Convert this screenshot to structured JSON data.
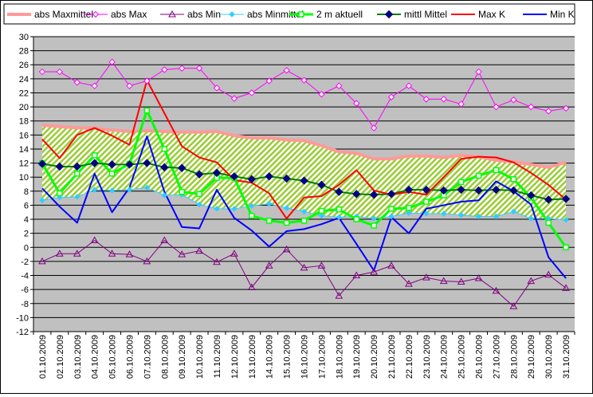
{
  "chart_data": {
    "type": "line",
    "title": "",
    "xlabel": "",
    "ylabel": "",
    "ylim": [
      -12,
      30
    ],
    "ytick_step": 2,
    "grid": true,
    "legend_position": "top",
    "categories": [
      "01.10.2009",
      "02.10.2009",
      "03.10.2009",
      "04.10.2009",
      "05.10.2009",
      "06.10.2009",
      "07.10.2009",
      "08.10.2009",
      "09.10.2009",
      "10.10.2009",
      "11.10.2009",
      "12.10.2009",
      "13.10.2009",
      "14.10.2009",
      "15.10.2009",
      "16.10.2009",
      "17.10.2009",
      "18.10.2009",
      "19.10.2009",
      "20.10.2009",
      "21.10.2009",
      "22.10.2009",
      "23.10.2009",
      "24.10.2009",
      "25.10.2009",
      "26.10.2009",
      "27.10.2009",
      "28.10.2009",
      "29.10.2009",
      "30.10.2009",
      "31.10.2009"
    ],
    "band": {
      "upper_series": "abs Maxmittel",
      "lower_series": "abs Minmittel",
      "fill_color": "#99cc33",
      "background_color": "#c0c0c0"
    },
    "series": [
      {
        "name": "abs Maxmittel",
        "color": "#ff9999",
        "marker": "none",
        "width": 4,
        "values": [
          17.4,
          17.2,
          17.0,
          17.0,
          16.7,
          16.5,
          16.6,
          16.5,
          16.4,
          16.4,
          16.5,
          15.9,
          15.6,
          15.6,
          15.3,
          15.2,
          14.5,
          13.6,
          13.4,
          12.6,
          12.6,
          13.0,
          13.0,
          12.8,
          13.1,
          12.9,
          12.4,
          12.2,
          11.8,
          11.4,
          12.1
        ]
      },
      {
        "name": "abs Max",
        "color": "#ff00ff",
        "marker": "diamond-open",
        "values": [
          25.0,
          25.0,
          23.5,
          23.0,
          26.4,
          23.0,
          23.7,
          25.3,
          25.5,
          25.5,
          22.7,
          21.2,
          22.0,
          23.7,
          25.2,
          23.8,
          21.8,
          23.0,
          20.5,
          17.0,
          21.4,
          23.0,
          21.1,
          21.1,
          20.4,
          25.0,
          20.0,
          21.0,
          20.0,
          19.4,
          19.8
        ]
      },
      {
        "name": "abs Min",
        "color": "#800080",
        "marker": "triangle-open",
        "values": [
          -2.0,
          -0.9,
          -0.9,
          1.0,
          -0.9,
          -1.0,
          -2.0,
          1.0,
          -1.0,
          -0.5,
          -2.1,
          -0.9,
          -5.7,
          -2.6,
          -0.3,
          -2.9,
          -2.6,
          -6.9,
          -4.0,
          -3.5,
          -2.6,
          -5.2,
          -4.3,
          -4.8,
          -4.9,
          -4.4,
          -6.2,
          -8.4,
          -4.8,
          -3.9,
          -5.8
        ]
      },
      {
        "name": "abs Minmittel",
        "color": "#33ccff",
        "marker": "diamond",
        "values": [
          6.7,
          7.1,
          7.2,
          8.2,
          8.1,
          8.2,
          8.5,
          7.4,
          7.5,
          6.1,
          5.5,
          5.5,
          5.9,
          6.2,
          5.6,
          5.1,
          4.5,
          4.3,
          4.4,
          4.1,
          4.4,
          4.9,
          4.8,
          4.8,
          4.6,
          4.4,
          4.4,
          5.1,
          4.1,
          4.1,
          3.9
        ]
      },
      {
        "name": "2 m aktuell",
        "color": "#00ff00",
        "marker": "square-open",
        "width": 3,
        "values": [
          12.0,
          7.7,
          10.5,
          13.1,
          10.5,
          11.9,
          19.5,
          14.0,
          7.9,
          7.6,
          9.9,
          9.9,
          4.5,
          3.8,
          3.5,
          3.8,
          5.2,
          5.4,
          4.0,
          3.1,
          5.5,
          5.6,
          6.5,
          7.4,
          9.3,
          10.2,
          11.0,
          9.7,
          7.1,
          3.5,
          0.0
        ]
      },
      {
        "name": "mittl Mittel",
        "color": "#008000",
        "marker": "diamond-navy",
        "width": 2,
        "values": [
          11.9,
          11.5,
          11.5,
          12.0,
          11.8,
          11.8,
          12.0,
          11.4,
          11.3,
          10.4,
          10.6,
          10.1,
          9.7,
          10.1,
          9.8,
          9.5,
          8.9,
          7.9,
          7.6,
          7.5,
          7.6,
          8.2,
          8.2,
          8.1,
          8.2,
          8.1,
          8.2,
          8.1,
          7.4,
          6.8,
          6.9
        ]
      },
      {
        "name": "Max K",
        "color": "#ff0000",
        "marker": "none",
        "width": 2,
        "values": [
          15.4,
          12.7,
          16.0,
          17.0,
          15.9,
          14.6,
          23.8,
          19.1,
          14.4,
          12.8,
          12.1,
          9.6,
          9.2,
          7.7,
          4.1,
          7.1,
          7.3,
          8.9,
          11.0,
          8.1,
          7.5,
          7.9,
          7.5,
          10.0,
          12.6,
          12.9,
          12.8,
          12.1,
          10.6,
          8.9,
          6.8
        ]
      },
      {
        "name": "Min K",
        "color": "#0000ff",
        "marker": "none",
        "width": 2,
        "values": [
          8.4,
          5.8,
          3.5,
          10.5,
          5.0,
          8.5,
          15.8,
          7.9,
          2.9,
          2.7,
          8.2,
          4.2,
          2.4,
          0.1,
          2.3,
          2.6,
          3.3,
          4.2,
          0.5,
          -3.3,
          4.3,
          2.0,
          5.5,
          6.0,
          6.5,
          6.7,
          9.4,
          8.0,
          6.1,
          -1.4,
          -4.4
        ]
      }
    ]
  }
}
